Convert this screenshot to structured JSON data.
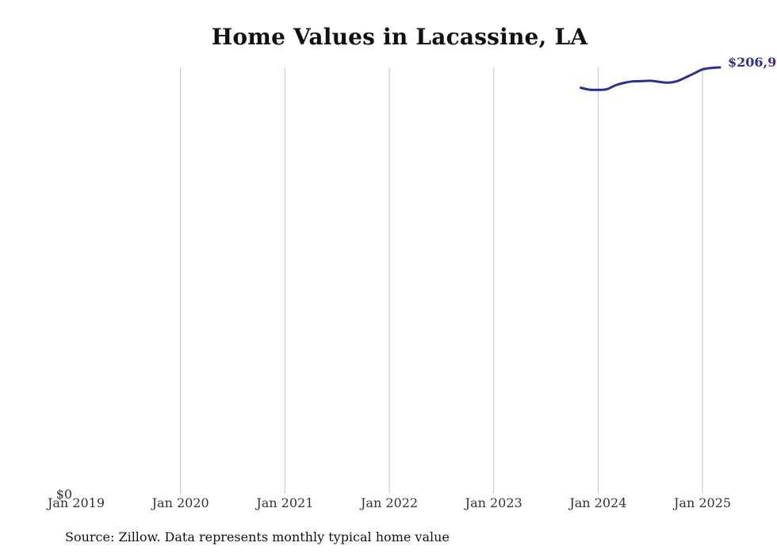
{
  "chart_data": {
    "type": "line",
    "title": "Home Values in Lacassine, LA",
    "source": "Source: Zillow. Data represents monthly typical home value",
    "xlabel": "",
    "ylabel": "",
    "x_ticks": [
      "Jan 2019",
      "Jan 2020",
      "Jan 2021",
      "Jan 2022",
      "Jan 2023",
      "Jan 2024",
      "Jan 2025"
    ],
    "x_range": [
      "2019-01",
      "2025-03"
    ],
    "y_ticks": [
      "$0"
    ],
    "ylim": [
      0,
      206900
    ],
    "grid": "vertical",
    "line_color": "#2e2e9a",
    "series": [
      {
        "x": [
          "2023-11",
          "2023-12",
          "2024-01",
          "2024-02",
          "2024-03",
          "2024-04",
          "2024-05",
          "2024-06",
          "2024-07",
          "2024-08",
          "2024-09",
          "2024-10",
          "2024-11",
          "2024-12",
          "2025-01",
          "2025-02",
          "2025-03"
        ],
        "values": [
          197000,
          196100,
          196000,
          196300,
          198200,
          199400,
          200100,
          200200,
          200400,
          199900,
          199500,
          200100,
          201900,
          203900,
          205900,
          206600,
          206900
        ]
      }
    ],
    "end_label": "$206,9"
  }
}
